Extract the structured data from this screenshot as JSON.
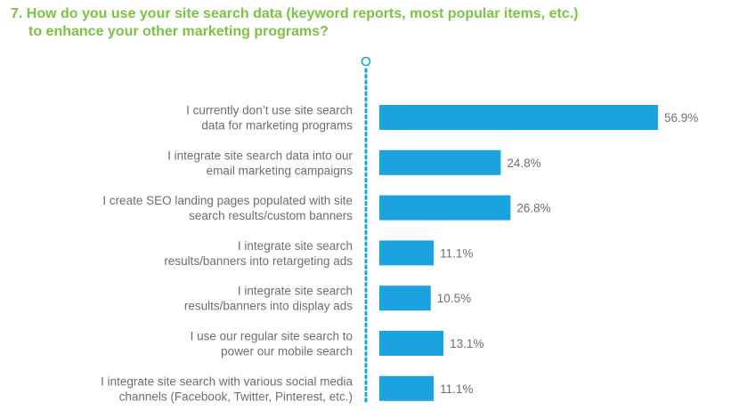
{
  "title": {
    "line1": "7. How do you use your site search data (keyword reports, most popular items, etc.)",
    "line2": "to enhance your other marketing programs?"
  },
  "colors": {
    "title": "#7cc243",
    "bar": "#1aa3df",
    "axis": "#1aa3df",
    "label": "#6d6e71"
  },
  "chart_data": {
    "type": "bar",
    "orientation": "horizontal",
    "title": "7. How do you use your site search data (keyword reports, most popular items, etc.) to enhance your other marketing programs?",
    "categories": [
      [
        "I currently don’t use site search",
        "data for marketing programs"
      ],
      [
        "I integrate site search data into our",
        "email marketing campaigns"
      ],
      [
        "I create SEO landing pages populated with site",
        "search results/custom banners"
      ],
      [
        "I integrate site search",
        "results/banners into retargeting ads"
      ],
      [
        "I integrate site search",
        "results/banners into display ads"
      ],
      [
        "I use our regular site search to",
        "power our mobile search"
      ],
      [
        "I integrate site search with various social media",
        "channels (Facebook, Twitter, Pinterest, etc.)"
      ]
    ],
    "values": [
      56.9,
      24.8,
      26.8,
      11.1,
      10.5,
      13.1,
      11.1
    ],
    "value_labels": [
      "56.9%",
      "24.8%",
      "26.8%",
      "11.1%",
      "10.5%",
      "13.1%",
      "11.1%"
    ],
    "value_unit": "%",
    "xlim": [
      0,
      100
    ],
    "grid": false,
    "legend": "none"
  }
}
